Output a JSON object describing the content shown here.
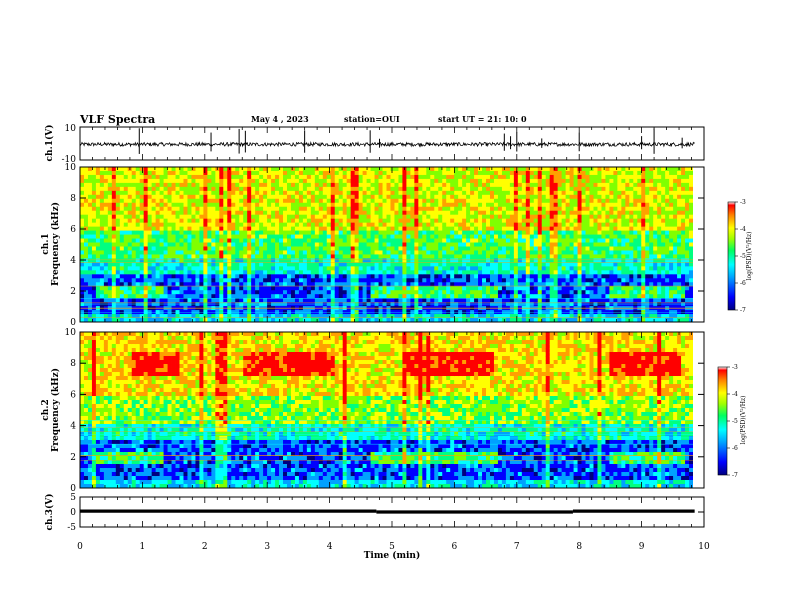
{
  "header": {
    "title": "VLF Spectra",
    "date": "May 4 , 2023",
    "station": "station=OUI",
    "start": "start UT = 21: 10: 0"
  },
  "colors": {
    "spectrum": [
      "#00007f",
      "#0000ff",
      "#00a0ff",
      "#00ffff",
      "#00ff80",
      "#80ff00",
      "#ffff00",
      "#ffa000",
      "#ff0000"
    ],
    "trace": "#000000"
  },
  "chart_data": [
    {
      "type": "line",
      "panel": "ch1-waveform",
      "ylabel": "ch.1(V)",
      "ylim": [
        -10,
        10
      ],
      "yticks": [
        "10",
        "-10"
      ],
      "xlim": [
        0,
        10
      ],
      "baseline": -0.5,
      "spikes_x_min": [
        0.95,
        2.1,
        2.55,
        2.65,
        3.6,
        4.65,
        4.8,
        6.8,
        6.9,
        7.0,
        7.4,
        8.0,
        9.0,
        9.2,
        9.65
      ]
    },
    {
      "type": "heatmap",
      "panel": "ch1-spectrogram",
      "ylabel": "ch.1\nFrequency (kHz)",
      "ylim": [
        0,
        10
      ],
      "yticks": [
        "0",
        "2",
        "4",
        "6",
        "8",
        "10"
      ],
      "xlim": [
        0,
        10
      ],
      "colorbar": {
        "label": "log(PSD)(V²/Hz)",
        "ticks": [
          "-3",
          "-4",
          "-5",
          "-6",
          "-7"
        ],
        "range": [
          -7,
          -3
        ]
      }
    },
    {
      "type": "heatmap",
      "panel": "ch2-spectrogram",
      "ylabel": "ch.2\nFrequency (kHz)",
      "ylim": [
        0,
        10
      ],
      "yticks": [
        "0",
        "2",
        "4",
        "6",
        "8",
        "10"
      ],
      "xlim": [
        0,
        10
      ],
      "colorbar": {
        "label": "log(PSD)(V²/Hz)",
        "ticks": [
          "-3",
          "-4",
          "-5",
          "-6",
          "-7"
        ],
        "range": [
          -7,
          -3
        ]
      }
    },
    {
      "type": "line",
      "panel": "ch3-channel",
      "ylabel": "ch.3(V)",
      "ylim": [
        -5,
        5
      ],
      "yticks": [
        "5",
        "0",
        "-5"
      ],
      "xlim": [
        0,
        10
      ],
      "segments": [
        {
          "x": [
            0,
            4.75
          ],
          "y": 0.3
        },
        {
          "x": [
            4.75,
            7.9
          ],
          "y": 0.0
        },
        {
          "x": [
            7.9,
            9.85
          ],
          "y": 0.3
        }
      ]
    }
  ],
  "xaxis": {
    "label": "Time (min)",
    "ticks": [
      "0",
      "1",
      "2",
      "3",
      "4",
      "5",
      "6",
      "7",
      "8",
      "9",
      "10"
    ]
  }
}
